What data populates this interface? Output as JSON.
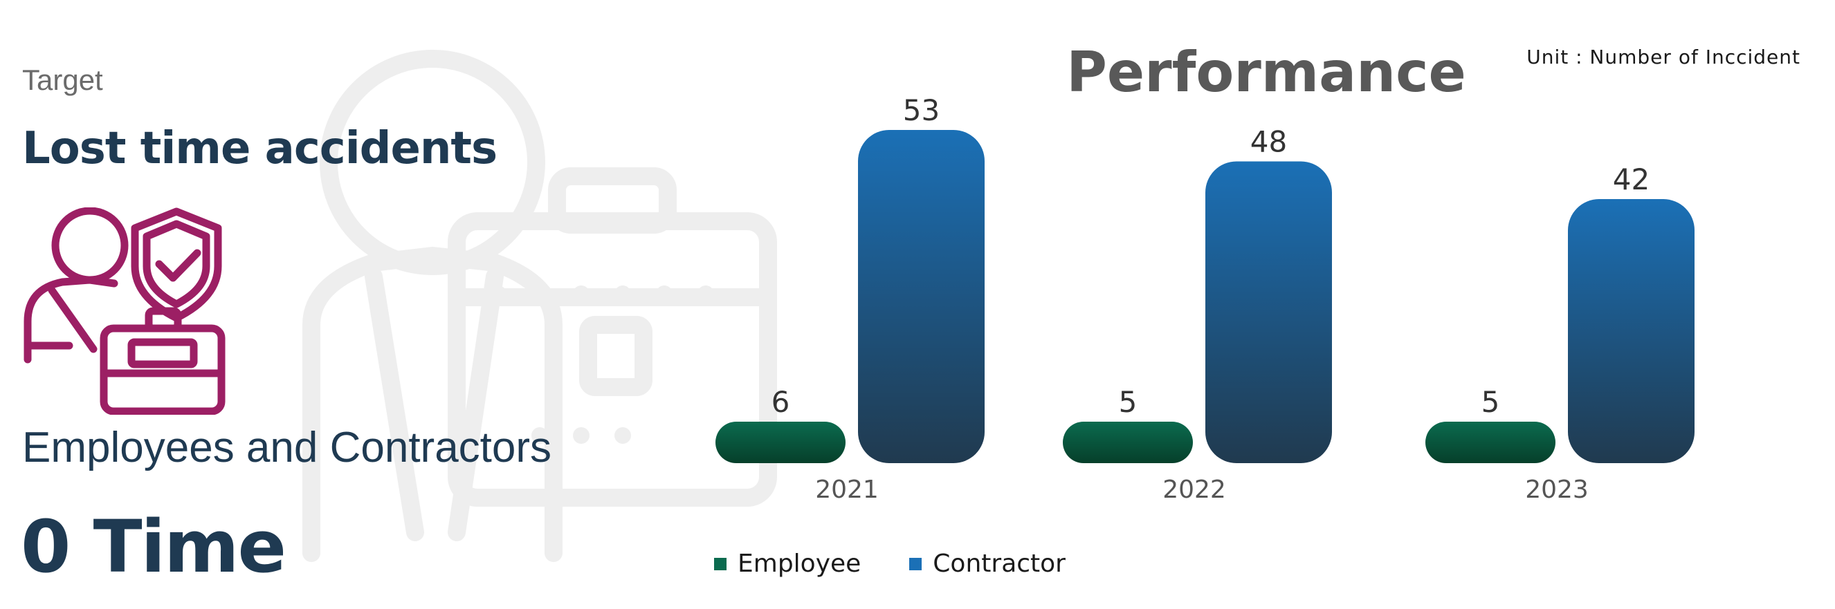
{
  "kpi": {
    "target_label": "Target",
    "title": "Lost time accidents",
    "scope": "Employees and Contractors",
    "target_value": "0 Time",
    "icon": "injured-worker-shield-icon",
    "icon_color": "#9c1f64"
  },
  "chart_data": {
    "type": "bar",
    "title": "Performance",
    "unit_note": "Unit : Number of Inccident",
    "categories": [
      "2021",
      "2022",
      "2023"
    ],
    "series": [
      {
        "name": "Employee",
        "values": [
          6,
          5,
          5
        ],
        "color": "#0b6b4f"
      },
      {
        "name": "Contractor",
        "values": [
          53,
          48,
          42
        ],
        "color": "#1b70b6"
      }
    ],
    "ylim": [
      0,
      53
    ],
    "grid": false,
    "legend_position": "bottom-left"
  }
}
